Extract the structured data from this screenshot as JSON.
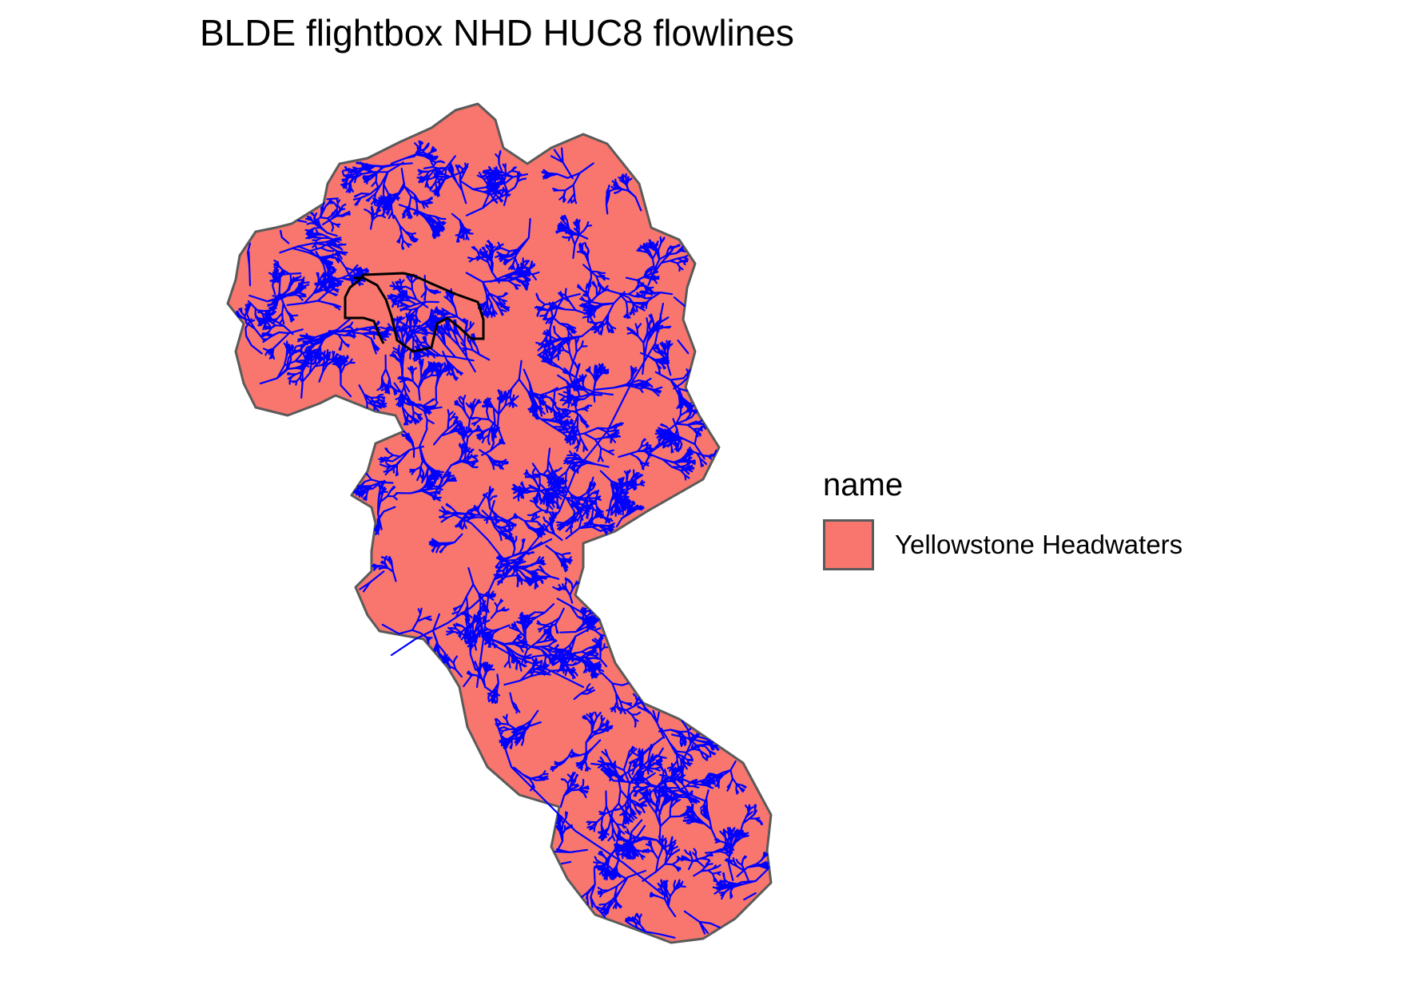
{
  "title": "BLDE flightbox NHD HUC8 flowlines",
  "legend": {
    "title": "name",
    "items": [
      {
        "label": "Yellowstone Headwaters",
        "color": "#F8766D"
      }
    ]
  },
  "colors": {
    "basin_fill": "#F8766D",
    "basin_outline": "#5a5a5a",
    "flowlines": "#0000FF",
    "flightbox_outline": "#000000"
  }
}
